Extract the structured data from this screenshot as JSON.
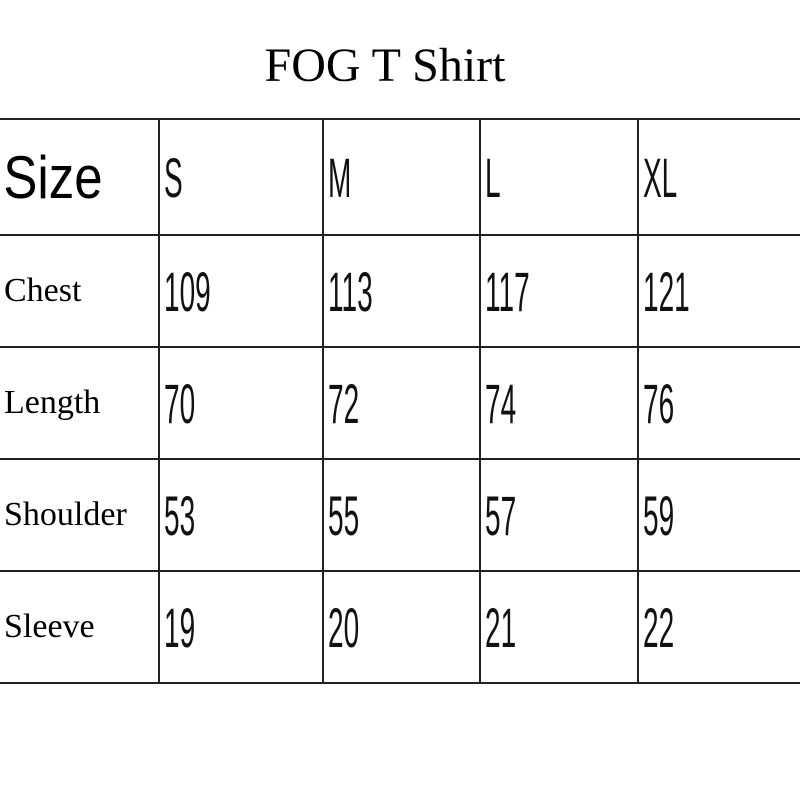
{
  "title": "FOG T Shirt",
  "header": {
    "label": "Size",
    "sizes": [
      "S",
      "M",
      "L",
      "XL"
    ]
  },
  "rows": [
    {
      "label": "Chest",
      "values": [
        "109",
        "113",
        "117",
        "121"
      ]
    },
    {
      "label": "Length",
      "values": [
        "70",
        "72",
        "74",
        "76"
      ]
    },
    {
      "label": "Shoulder",
      "values": [
        "53",
        "55",
        "57",
        "59"
      ]
    },
    {
      "label": "Sleeve",
      "values": [
        "19",
        "20",
        "21",
        "22"
      ]
    }
  ]
}
